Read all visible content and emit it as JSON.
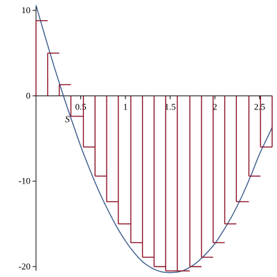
{
  "chart_data": {
    "type": "line",
    "title": "",
    "xlabel": "S",
    "ylabel": "",
    "xlim": [
      0,
      2.64
    ],
    "ylim": [
      -20.5,
      10.5
    ],
    "x_ticks": [
      0.5,
      1,
      1.5,
      2,
      2.5
    ],
    "x_tick_labels": [
      "0.5",
      "1",
      "1.5",
      "2",
      "2.5"
    ],
    "y_ticks": [
      10,
      0,
      -10,
      -20
    ],
    "y_tick_labels": [
      "10",
      "0",
      "-10",
      "-20"
    ],
    "grid": false,
    "legend": "none",
    "colors": {
      "curve": "#3b5a8a",
      "steps": "#8b0e24",
      "axis": "#000000"
    },
    "series": [
      {
        "style": "smooth-curve",
        "x": [
          0.0,
          0.1,
          0.2,
          0.3,
          0.4,
          0.5,
          0.6,
          0.7,
          0.8,
          0.9,
          1.0,
          1.1,
          1.2,
          1.3,
          1.4,
          1.5,
          1.6,
          1.7,
          1.8,
          1.9,
          2.0,
          2.1,
          2.2,
          2.3,
          2.4,
          2.5,
          2.6,
          2.64
        ],
        "y": [
          10.6,
          7.0,
          3.5,
          0.2,
          -2.9,
          -5.9,
          -8.6,
          -11.1,
          -13.3,
          -15.3,
          -17.0,
          -18.4,
          -19.5,
          -20.2,
          -20.6,
          -20.7,
          -20.6,
          -20.2,
          -19.5,
          -18.5,
          -17.3,
          -15.7,
          -13.9,
          -11.8,
          -9.4,
          -6.8,
          -4.6,
          -3.7
        ]
      },
      {
        "style": "step",
        "edges": [
          0.0,
          0.13,
          0.26,
          0.39,
          0.53,
          0.66,
          0.79,
          0.92,
          1.06,
          1.19,
          1.32,
          1.45,
          1.58,
          1.72,
          1.85,
          1.98,
          2.11,
          2.24,
          2.38,
          2.51,
          2.64
        ],
        "levels": [
          8.8,
          5.0,
          1.3,
          -2.4,
          -6.0,
          -9.4,
          -12.4,
          -15.0,
          -17.2,
          -18.9,
          -20.0,
          -20.5,
          -20.5,
          -20.0,
          -18.9,
          -17.2,
          -15.0,
          -12.4,
          -9.4,
          -6.0
        ]
      }
    ]
  }
}
